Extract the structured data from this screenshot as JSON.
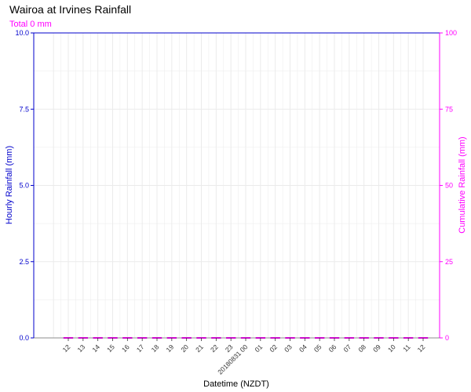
{
  "chart_data": {
    "type": "bar",
    "title": "Wairoa at Irvines Rainfall",
    "subtitle": "Total 0 mm",
    "xlabel": "Datetime (NZDT)",
    "ylabel_left": "Hourly Rainfall (mm)",
    "ylabel_right": "Cumulative Rainfall (mm)",
    "ylim_left": [
      0,
      10
    ],
    "ylim_right": [
      0,
      100
    ],
    "yticks_left": [
      "0.0",
      "2.5",
      "5.0",
      "7.5",
      "10.0"
    ],
    "yticks_right": [
      "0",
      "25",
      "50",
      "75",
      "100"
    ],
    "grid": true,
    "categories": [
      "12",
      "13",
      "14",
      "15",
      "16",
      "17",
      "18",
      "19",
      "20",
      "21",
      "22",
      "23",
      "20180831 00",
      "01",
      "02",
      "03",
      "04",
      "05",
      "06",
      "07",
      "08",
      "09",
      "10",
      "11",
      "12"
    ],
    "series": [
      {
        "axis": "left",
        "color": "#0000cc",
        "values": [
          0,
          0,
          0,
          0,
          0,
          0,
          0,
          0,
          0,
          0,
          0,
          0,
          0,
          0,
          0,
          0,
          0,
          0,
          0,
          0,
          0,
          0,
          0,
          0,
          0
        ]
      },
      {
        "axis": "right",
        "color": "#ff00ff",
        "values": [
          0,
          0,
          0,
          0,
          0,
          0,
          0,
          0,
          0,
          0,
          0,
          0,
          0,
          0,
          0,
          0,
          0,
          0,
          0,
          0,
          0,
          0,
          0,
          0,
          0
        ]
      }
    ],
    "colors": {
      "left_axis": "#0000cc",
      "right_axis": "#ff00ff",
      "grid": "#ebebeb"
    }
  }
}
